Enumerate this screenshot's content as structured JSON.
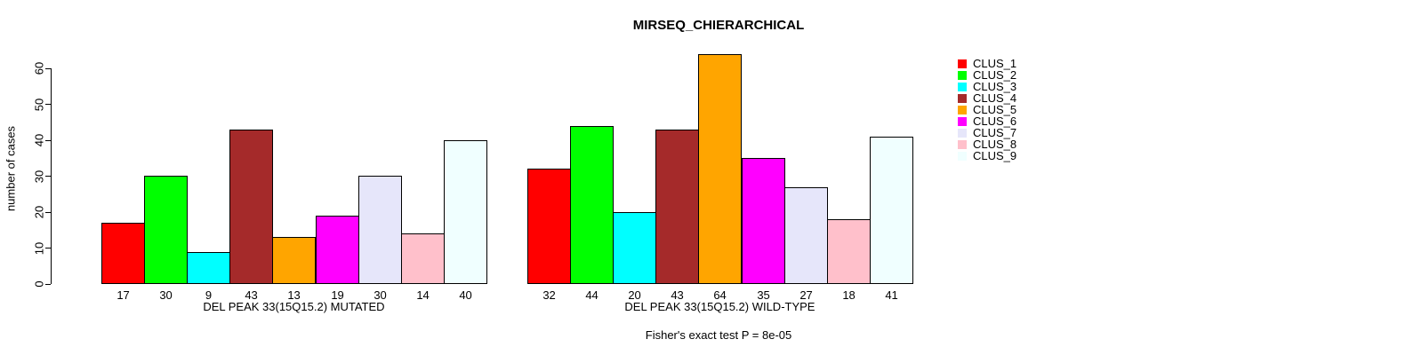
{
  "figure": {
    "background_color": "#FFFFFF",
    "text_color": "#000000"
  },
  "chart_data": {
    "type": "bar",
    "title": "MIRSEQ_CHIERARCHICAL",
    "ylabel": "number of cases",
    "xlabel": "",
    "footnote": "Fisher's exact test P = 8e-05",
    "ylim": [
      0,
      64
    ],
    "yticks": [
      0,
      10,
      20,
      30,
      40,
      50,
      60
    ],
    "grid": false,
    "legend_position": "right",
    "categories": [
      "CLUS_1",
      "CLUS_2",
      "CLUS_3",
      "CLUS_4",
      "CLUS_5",
      "CLUS_6",
      "CLUS_7",
      "CLUS_8",
      "CLUS_9"
    ],
    "colors": [
      "#FF0000",
      "#00FF00",
      "#00FFFF",
      "#A52A2A",
      "#FFA500",
      "#FF00FF",
      "#E6E6FA",
      "#FFC0CB",
      "#F0FFFF"
    ],
    "bar_border_color": "#000000",
    "groups": [
      {
        "label": "DEL PEAK 33(15Q15.2) MUTATED",
        "values": [
          17,
          30,
          9,
          43,
          13,
          19,
          30,
          14,
          40
        ]
      },
      {
        "label": "DEL PEAK 33(15Q15.2) WILD-TYPE",
        "values": [
          32,
          44,
          20,
          43,
          64,
          35,
          27,
          18,
          41
        ]
      }
    ]
  }
}
